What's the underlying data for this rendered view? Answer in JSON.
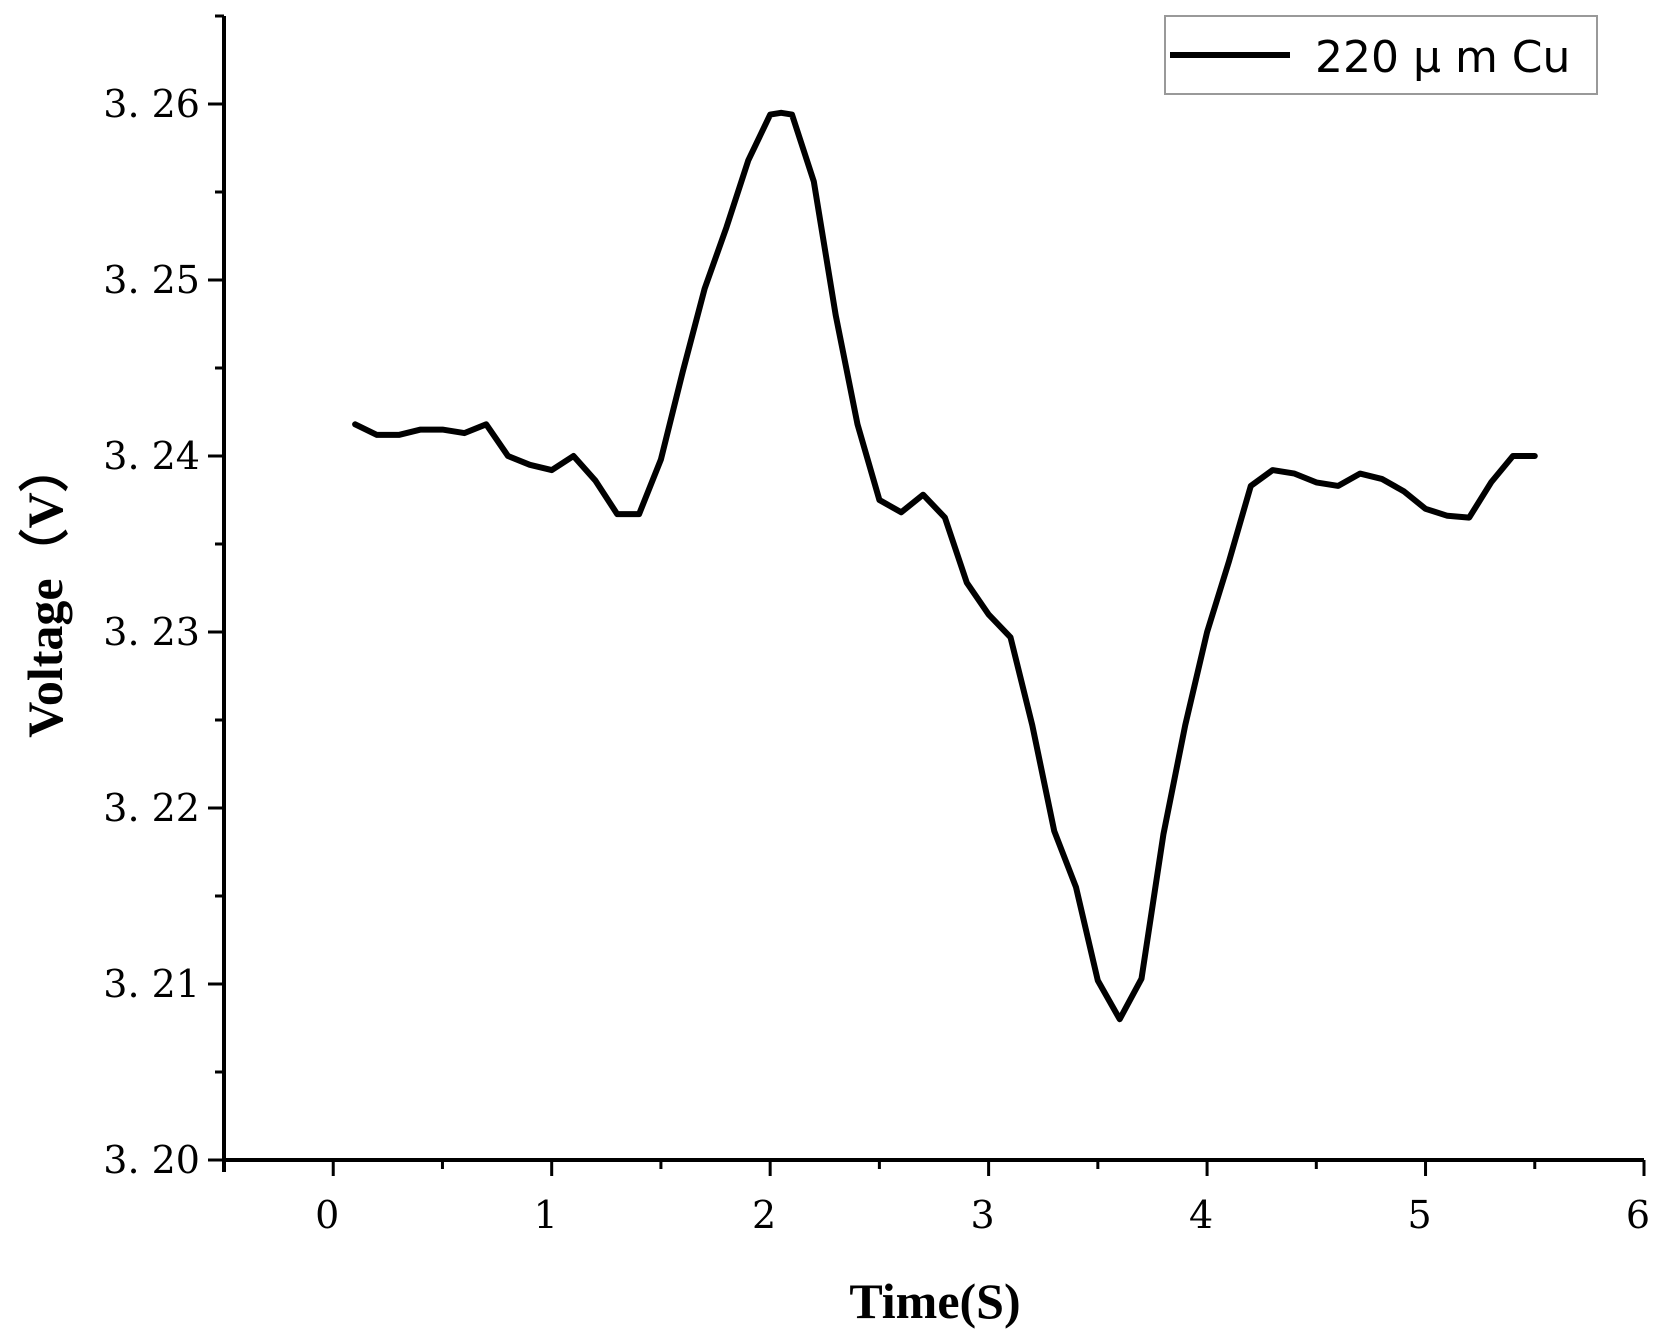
{
  "chart_data": {
    "type": "line",
    "title": "",
    "xlabel": "Time(S)",
    "ylabel": "Voltage（V）",
    "xlim": [
      -0.5,
      6.0
    ],
    "ylim": [
      3.2,
      3.265
    ],
    "x_ticks": [
      0,
      1,
      2,
      3,
      4,
      5,
      6
    ],
    "x_tick_labels": [
      "0",
      "1",
      "2",
      "3",
      "4",
      "5",
      "6"
    ],
    "y_ticks": [
      3.2,
      3.21,
      3.22,
      3.23,
      3.24,
      3.25,
      3.26
    ],
    "y_tick_labels": [
      "3. 20",
      "3. 21",
      "3. 22",
      "3. 23",
      "3. 24",
      "3. 25",
      "3. 26"
    ],
    "grid": false,
    "legend_position": "top-right",
    "series": [
      {
        "name": "220 μ m Cu",
        "color": "#000000",
        "x": [
          0.1,
          0.2,
          0.3,
          0.4,
          0.5,
          0.6,
          0.7,
          0.8,
          0.9,
          1.0,
          1.1,
          1.2,
          1.3,
          1.4,
          1.5,
          1.6,
          1.7,
          1.8,
          1.9,
          2.0,
          2.05,
          2.1,
          2.2,
          2.3,
          2.4,
          2.5,
          2.6,
          2.7,
          2.8,
          2.9,
          3.0,
          3.1,
          3.2,
          3.3,
          3.4,
          3.5,
          3.6,
          3.7,
          3.8,
          3.9,
          4.0,
          4.1,
          4.2,
          4.3,
          4.4,
          4.5,
          4.6,
          4.7,
          4.8,
          4.9,
          5.0,
          5.1,
          5.2,
          5.3,
          5.4,
          5.5
        ],
        "y": [
          3.2418,
          3.2412,
          3.2412,
          3.2415,
          3.2415,
          3.2413,
          3.2418,
          3.24,
          3.2395,
          3.2392,
          3.24,
          3.2386,
          3.2367,
          3.2367,
          3.2398,
          3.2448,
          3.2495,
          3.253,
          3.2568,
          3.2594,
          3.2595,
          3.2594,
          3.2556,
          3.248,
          3.2418,
          3.2375,
          3.2368,
          3.2378,
          3.2365,
          3.2328,
          3.231,
          3.2297,
          3.2247,
          3.2187,
          3.2155,
          3.2102,
          3.208,
          3.2103,
          3.2185,
          3.2247,
          3.23,
          3.234,
          3.2383,
          3.2392,
          3.239,
          3.2385,
          3.2383,
          3.239,
          3.2387,
          3.238,
          3.237,
          3.2366,
          3.2365,
          3.2385,
          3.24,
          3.24
        ]
      }
    ]
  }
}
